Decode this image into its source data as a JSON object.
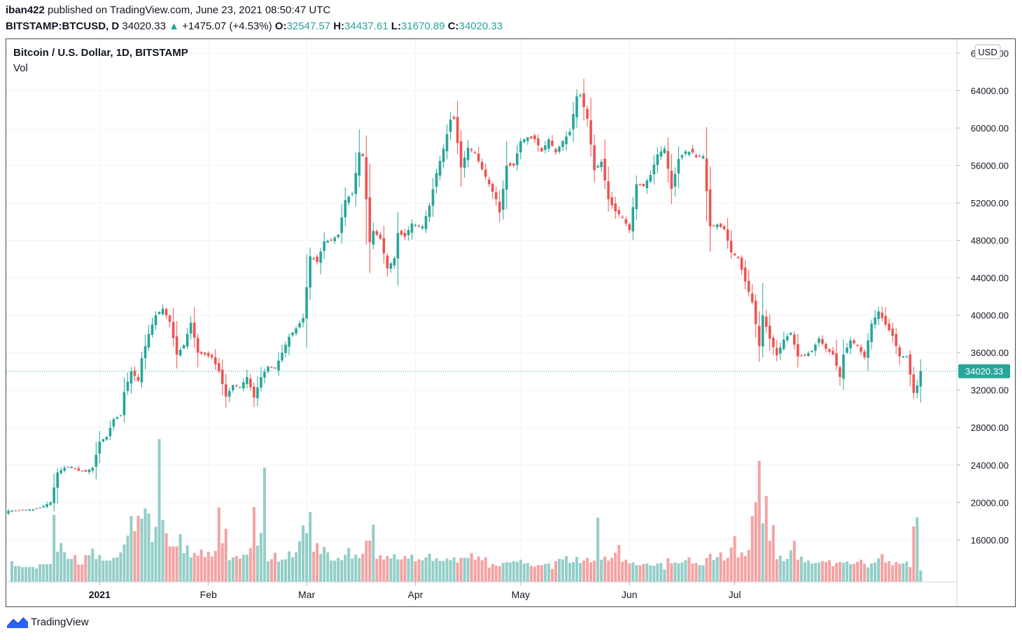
{
  "header": {
    "user": "iban422",
    "published": "published on TradingView.com, June 23, 2021 08:50:47 UTC",
    "symbol": "BITSTAMP:BTCUSD, D",
    "last": "34020.33",
    "change": "+1475.07 (+4.53%)",
    "o_label": "O:",
    "o_value": "32547.57",
    "h_label": "H:",
    "h_value": "34437.61",
    "l_label": "L:",
    "l_value": "31670.89",
    "c_label": "C:",
    "c_value": "34020.33"
  },
  "legend": {
    "title": "Bitcoin / U.S. Dollar, 1D, BITSTAMP",
    "vol": "Vol"
  },
  "footer": {
    "brand": "TradingView"
  },
  "colors": {
    "up": "#26a69a",
    "down": "#ef5350",
    "vol_up": "#93cec7",
    "vol_down": "#f4a3a3"
  },
  "chart_data": {
    "type": "candlestick",
    "title": "Bitcoin / U.S. Dollar, 1D, BITSTAMP",
    "currency": "USD",
    "last_price_label": "34020.33",
    "last_price": 34020.33,
    "ylim": [
      11500,
      69500
    ],
    "y_ticks": [
      16000,
      20000,
      24000,
      28000,
      32000,
      36000,
      40000,
      44000,
      48000,
      52000,
      56000,
      60000,
      64000,
      68000
    ],
    "y_tick_labels": [
      "16000.00",
      "20000.00",
      "24000.00",
      "28000.00",
      "32000.00",
      "36000.00",
      "40000.00",
      "44000.00",
      "48000.00",
      "52000.00",
      "56000.00",
      "60000.00",
      "64000.00",
      "68000.00"
    ],
    "x_ticks": [
      {
        "label": "2021",
        "date": "2021-01-01",
        "bold": true
      },
      {
        "label": "Feb",
        "date": "2021-02-01",
        "bold": false
      },
      {
        "label": "Mar",
        "date": "2021-03-01",
        "bold": false
      },
      {
        "label": "Apr",
        "date": "2021-04-01",
        "bold": false
      },
      {
        "label": "May",
        "date": "2021-05-01",
        "bold": false
      },
      {
        "label": "Jun",
        "date": "2021-06-01",
        "bold": false
      },
      {
        "label": "Jul",
        "date": "2021-07-01",
        "bold": false
      }
    ],
    "first_date": "2020-12-06",
    "grid": true,
    "volume_scale_max": 100,
    "anchors_close": [
      [
        0,
        19100
      ],
      [
        5,
        19200
      ],
      [
        8,
        19300
      ],
      [
        10,
        19600
      ],
      [
        12,
        20000
      ],
      [
        14,
        23200
      ],
      [
        16,
        23700
      ],
      [
        18,
        23800
      ],
      [
        20,
        23400
      ],
      [
        22,
        23300
      ],
      [
        24,
        23700
      ],
      [
        26,
        26500
      ],
      [
        28,
        27000
      ],
      [
        30,
        28900
      ],
      [
        32,
        29300
      ],
      [
        33,
        31800
      ],
      [
        35,
        34000
      ],
      [
        37,
        33000
      ],
      [
        38,
        35400
      ],
      [
        40,
        38000
      ],
      [
        42,
        40000
      ],
      [
        44,
        40700
      ],
      [
        46,
        39300
      ],
      [
        48,
        35800
      ],
      [
        50,
        36800
      ],
      [
        52,
        39200
      ],
      [
        54,
        36000
      ],
      [
        56,
        35800
      ],
      [
        58,
        35500
      ],
      [
        60,
        34000
      ],
      [
        62,
        31300
      ],
      [
        64,
        32500
      ],
      [
        66,
        32300
      ],
      [
        68,
        33400
      ],
      [
        70,
        31200
      ],
      [
        72,
        33400
      ],
      [
        74,
        34500
      ],
      [
        76,
        34300
      ],
      [
        78,
        36000
      ],
      [
        80,
        37700
      ],
      [
        82,
        38600
      ],
      [
        84,
        39700
      ],
      [
        86,
        46300
      ],
      [
        88,
        45700
      ],
      [
        90,
        47900
      ],
      [
        92,
        48000
      ],
      [
        94,
        48600
      ],
      [
        96,
        52300
      ],
      [
        98,
        53000
      ],
      [
        100,
        57400
      ],
      [
        101,
        57000
      ],
      [
        103,
        47800
      ],
      [
        104,
        49000
      ],
      [
        106,
        48200
      ],
      [
        108,
        45000
      ],
      [
        110,
        46100
      ],
      [
        111,
        48800
      ],
      [
        113,
        48400
      ],
      [
        115,
        49800
      ],
      [
        117,
        49500
      ],
      [
        118,
        49500
      ],
      [
        120,
        51700
      ],
      [
        122,
        55200
      ],
      [
        124,
        57800
      ],
      [
        126,
        60900
      ],
      [
        127,
        61000
      ],
      [
        129,
        55800
      ],
      [
        131,
        57900
      ],
      [
        133,
        57300
      ],
      [
        135,
        55600
      ],
      [
        137,
        54000
      ],
      [
        139,
        52400
      ],
      [
        140,
        51000
      ],
      [
        142,
        56000
      ],
      [
        144,
        56000
      ],
      [
        146,
        58600
      ],
      [
        148,
        59000
      ],
      [
        150,
        58800
      ],
      [
        152,
        57500
      ],
      [
        154,
        58800
      ],
      [
        156,
        57400
      ],
      [
        158,
        58600
      ],
      [
        160,
        59600
      ],
      [
        162,
        63400
      ],
      [
        163,
        63500
      ],
      [
        165,
        61000
      ],
      [
        167,
        55500
      ],
      [
        169,
        56400
      ],
      [
        171,
        52400
      ],
      [
        173,
        51100
      ],
      [
        175,
        50500
      ],
      [
        177,
        49100
      ],
      [
        179,
        54000
      ],
      [
        181,
        53800
      ],
      [
        183,
        55000
      ],
      [
        185,
        57200
      ],
      [
        187,
        57800
      ],
      [
        189,
        53500
      ],
      [
        191,
        56700
      ],
      [
        193,
        57500
      ],
      [
        195,
        57400
      ],
      [
        196,
        56900
      ],
      [
        198,
        57000
      ],
      [
        200,
        49500
      ],
      [
        202,
        49700
      ],
      [
        204,
        49200
      ],
      [
        206,
        46700
      ],
      [
        208,
        46100
      ],
      [
        210,
        43600
      ],
      [
        212,
        41400
      ],
      [
        214,
        36700
      ],
      [
        215,
        40000
      ],
      [
        217,
        37500
      ],
      [
        219,
        35700
      ],
      [
        221,
        37400
      ],
      [
        223,
        38100
      ],
      [
        225,
        35600
      ],
      [
        227,
        35700
      ],
      [
        229,
        36200
      ],
      [
        231,
        37500
      ],
      [
        233,
        36400
      ],
      [
        235,
        35800
      ],
      [
        237,
        33400
      ],
      [
        238,
        35800
      ],
      [
        240,
        37300
      ],
      [
        242,
        36700
      ],
      [
        244,
        35500
      ],
      [
        246,
        39100
      ],
      [
        248,
        40400
      ],
      [
        250,
        39000
      ],
      [
        252,
        37800
      ],
      [
        254,
        35600
      ],
      [
        256,
        35600
      ],
      [
        258,
        31700
      ],
      [
        259,
        32500
      ],
      [
        260,
        34020
      ]
    ],
    "volume": [
      {
        "day": 1,
        "v": 4.5
      },
      {
        "day": 4,
        "v": 3.2
      },
      {
        "day": 8,
        "v": 2.9
      },
      {
        "day": 12,
        "v": 3.9
      },
      {
        "day": 13,
        "v": 14.5
      },
      {
        "day": 15,
        "v": 8.4
      },
      {
        "day": 16,
        "v": 6.4
      },
      {
        "day": 19,
        "v": 5.8
      },
      {
        "day": 21,
        "v": 3.8
      },
      {
        "day": 24,
        "v": 7.2
      },
      {
        "day": 26,
        "v": 5.8
      },
      {
        "day": 30,
        "v": 5.2
      },
      {
        "day": 32,
        "v": 6.4
      },
      {
        "day": 33,
        "v": 8.1
      },
      {
        "day": 35,
        "v": 14.2
      },
      {
        "day": 36,
        "v": 11.0
      },
      {
        "day": 37,
        "v": 14.3
      },
      {
        "day": 38,
        "v": 13.7
      },
      {
        "day": 39,
        "v": 15.9
      },
      {
        "day": 40,
        "v": 14.8
      },
      {
        "day": 42,
        "v": 11.9
      },
      {
        "day": 43,
        "v": 30.9
      },
      {
        "day": 44,
        "v": 13.4
      },
      {
        "day": 45,
        "v": 10.5
      },
      {
        "day": 49,
        "v": 10.3
      },
      {
        "day": 51,
        "v": 7.9
      },
      {
        "day": 53,
        "v": 6.3
      },
      {
        "day": 55,
        "v": 7.0
      },
      {
        "day": 57,
        "v": 6.5
      },
      {
        "day": 59,
        "v": 6.7
      },
      {
        "day": 60,
        "v": 16.1
      },
      {
        "day": 62,
        "v": 11.5
      },
      {
        "day": 64,
        "v": 5.3
      },
      {
        "day": 65,
        "v": 5.6
      },
      {
        "day": 67,
        "v": 5.9
      },
      {
        "day": 69,
        "v": 7.3
      },
      {
        "day": 70,
        "v": 16.2
      },
      {
        "day": 72,
        "v": 10.6
      },
      {
        "day": 73,
        "v": 24.7
      },
      {
        "day": 75,
        "v": 4.9
      },
      {
        "day": 76,
        "v": 6.3
      },
      {
        "day": 78,
        "v": 4.8
      },
      {
        "day": 79,
        "v": 4.9
      },
      {
        "day": 80,
        "v": 6.6
      },
      {
        "day": 82,
        "v": 6.4
      },
      {
        "day": 84,
        "v": 12.2
      },
      {
        "day": 86,
        "v": 15.1
      },
      {
        "day": 88,
        "v": 8.4
      },
      {
        "day": 90,
        "v": 7.6
      },
      {
        "day": 91,
        "v": 6.4
      },
      {
        "day": 94,
        "v": 5.2
      },
      {
        "day": 95,
        "v": 4.7
      },
      {
        "day": 97,
        "v": 7.3
      },
      {
        "day": 99,
        "v": 5.9
      },
      {
        "day": 101,
        "v": 6.1
      },
      {
        "day": 104,
        "v": 12.4
      },
      {
        "day": 106,
        "v": 5.8
      },
      {
        "day": 108,
        "v": 5.6
      },
      {
        "day": 110,
        "v": 6.0
      },
      {
        "day": 111,
        "v": 4.9
      },
      {
        "day": 113,
        "v": 5.6
      },
      {
        "day": 115,
        "v": 5.9
      },
      {
        "day": 117,
        "v": 4.9
      },
      {
        "day": 119,
        "v": 5.3
      },
      {
        "day": 120,
        "v": 6.1
      },
      {
        "day": 122,
        "v": 5.1
      },
      {
        "day": 125,
        "v": 5.1
      },
      {
        "day": 127,
        "v": 5.3
      },
      {
        "day": 128,
        "v": 4.2
      },
      {
        "day": 132,
        "v": 6.2
      },
      {
        "day": 134,
        "v": 5.5
      },
      {
        "day": 136,
        "v": 5.3
      },
      {
        "day": 137,
        "v": 3.1
      },
      {
        "day": 138,
        "v": 3.9
      },
      {
        "day": 140,
        "v": 3.4
      },
      {
        "day": 142,
        "v": 4.3
      },
      {
        "day": 144,
        "v": 4.5
      },
      {
        "day": 146,
        "v": 4.8
      },
      {
        "day": 148,
        "v": 4.1
      },
      {
        "day": 150,
        "v": 3.3
      },
      {
        "day": 152,
        "v": 3.6
      },
      {
        "day": 154,
        "v": 4.0
      },
      {
        "day": 155,
        "v": 2.8
      },
      {
        "day": 157,
        "v": 5.0
      },
      {
        "day": 159,
        "v": 5.6
      },
      {
        "day": 161,
        "v": 4.3
      },
      {
        "day": 162,
        "v": 5.4
      },
      {
        "day": 163,
        "v": 4.1
      },
      {
        "day": 165,
        "v": 5.2
      },
      {
        "day": 167,
        "v": 4.6
      },
      {
        "day": 168,
        "v": 13.9
      },
      {
        "day": 170,
        "v": 5.5
      },
      {
        "day": 172,
        "v": 5.2
      },
      {
        "day": 174,
        "v": 8.0
      },
      {
        "day": 176,
        "v": 4.8
      },
      {
        "day": 178,
        "v": 4.2
      },
      {
        "day": 180,
        "v": 3.6
      },
      {
        "day": 182,
        "v": 4.0
      },
      {
        "day": 184,
        "v": 3.5
      },
      {
        "day": 186,
        "v": 4.1
      },
      {
        "day": 187,
        "v": 2.7
      },
      {
        "day": 188,
        "v": 5.1
      },
      {
        "day": 190,
        "v": 4.2
      },
      {
        "day": 192,
        "v": 4.2
      },
      {
        "day": 194,
        "v": 5.3
      },
      {
        "day": 196,
        "v": 4.1
      },
      {
        "day": 198,
        "v": 3.6
      },
      {
        "day": 200,
        "v": 6.1
      },
      {
        "day": 202,
        "v": 5.4
      },
      {
        "day": 203,
        "v": 6.4
      },
      {
        "day": 205,
        "v": 5.2
      },
      {
        "day": 207,
        "v": 9.9
      },
      {
        "day": 209,
        "v": 6.4
      },
      {
        "day": 211,
        "v": 6.9
      },
      {
        "day": 212,
        "v": 14.2
      },
      {
        "day": 214,
        "v": 26.2
      },
      {
        "day": 216,
        "v": 18.6
      },
      {
        "day": 218,
        "v": 12.3
      },
      {
        "day": 220,
        "v": 5.7
      },
      {
        "day": 222,
        "v": 5.0
      },
      {
        "day": 224,
        "v": 8.9
      },
      {
        "day": 226,
        "v": 5.5
      },
      {
        "day": 228,
        "v": 4.6
      },
      {
        "day": 230,
        "v": 4.1
      },
      {
        "day": 232,
        "v": 4.5
      },
      {
        "day": 234,
        "v": 4.7
      },
      {
        "day": 235,
        "v": 3.4
      },
      {
        "day": 237,
        "v": 4.3
      },
      {
        "day": 239,
        "v": 4.4
      },
      {
        "day": 241,
        "v": 3.9
      },
      {
        "day": 243,
        "v": 4.8
      },
      {
        "day": 244,
        "v": 3.9
      },
      {
        "day": 245,
        "v": 3.1
      },
      {
        "day": 247,
        "v": 4.2
      },
      {
        "day": 249,
        "v": 6.0
      },
      {
        "day": 251,
        "v": 4.5
      },
      {
        "day": 252,
        "v": 3.6
      },
      {
        "day": 253,
        "v": 4.3
      },
      {
        "day": 255,
        "v": 4.0
      },
      {
        "day": 256,
        "v": 4.4
      },
      {
        "day": 257,
        "v": 3.2
      },
      {
        "day": 258,
        "v": 12.0
      },
      {
        "day": 259,
        "v": 14.0
      },
      {
        "day": 260,
        "v": 2.5
      }
    ]
  }
}
